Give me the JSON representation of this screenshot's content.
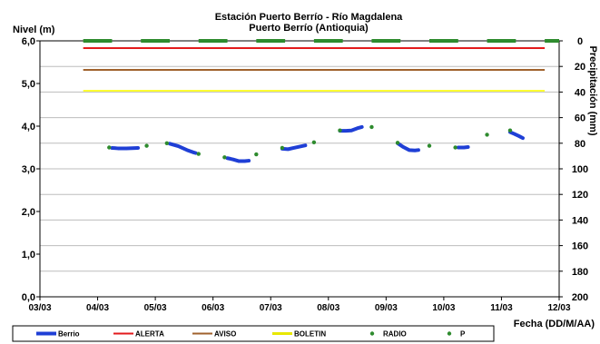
{
  "chart_data": {
    "type": "line",
    "title": "Estación Puerto Berrío - Río Magdalena",
    "subtitle": "Puerto Berrío (Antioquia)",
    "ylabel": "Nivel (m)",
    "y2label": "Precipitación (mm)",
    "xlabel": "Fecha (DD/M/AA)",
    "xlim": [
      0,
      9
    ],
    "ylim": [
      0,
      6
    ],
    "y2lim": [
      0,
      200
    ],
    "x_ticks": [
      "03/03",
      "04/03",
      "05/03",
      "06/03",
      "07/03",
      "08/03",
      "09/03",
      "10/03",
      "11/03",
      "12/03"
    ],
    "y_ticks": [
      "0,0",
      "1,0",
      "2,0",
      "3,0",
      "4,0",
      "5,0",
      "6,0"
    ],
    "y2_ticks": [
      "0",
      "20",
      "40",
      "60",
      "80",
      "100",
      "120",
      "140",
      "160",
      "180",
      "200"
    ],
    "grid": true,
    "legend_position": "bottom",
    "legend": [
      "Berrio",
      "ALERTA",
      "AVISO",
      "BOLETIN",
      "RADIO",
      "P"
    ],
    "series": [
      {
        "name": "Berrio",
        "color": "#1f3fd6",
        "kind": "line",
        "segments": [
          [
            [
              1.25,
              3.49
            ],
            [
              1.35,
              3.48
            ],
            [
              1.5,
              3.48
            ],
            [
              1.7,
              3.49
            ]
          ],
          [
            [
              2.25,
              3.59
            ],
            [
              2.4,
              3.53
            ],
            [
              2.55,
              3.44
            ],
            [
              2.65,
              3.39
            ],
            [
              2.7,
              3.37
            ]
          ],
          [
            [
              3.25,
              3.25
            ],
            [
              3.35,
              3.22
            ],
            [
              3.45,
              3.18
            ],
            [
              3.55,
              3.18
            ],
            [
              3.62,
              3.19
            ]
          ],
          [
            [
              4.2,
              3.47
            ],
            [
              4.3,
              3.46
            ],
            [
              4.4,
              3.49
            ],
            [
              4.5,
              3.52
            ],
            [
              4.6,
              3.55
            ]
          ],
          [
            [
              5.2,
              3.89
            ],
            [
              5.3,
              3.89
            ],
            [
              5.4,
              3.9
            ],
            [
              5.5,
              3.95
            ],
            [
              5.58,
              3.98
            ]
          ],
          [
            [
              6.2,
              3.6
            ],
            [
              6.3,
              3.51
            ],
            [
              6.4,
              3.44
            ],
            [
              6.5,
              3.43
            ],
            [
              6.56,
              3.44
            ]
          ],
          [
            [
              7.25,
              3.5
            ],
            [
              7.35,
              3.5
            ],
            [
              7.42,
              3.51
            ]
          ],
          [
            [
              8.15,
              3.86
            ],
            [
              8.22,
              3.82
            ],
            [
              8.3,
              3.77
            ],
            [
              8.37,
              3.72
            ]
          ]
        ]
      },
      {
        "name": "ALERTA",
        "color": "#e31a1c",
        "kind": "line",
        "points": [
          [
            0.75,
            5.83
          ],
          [
            8.75,
            5.83
          ]
        ]
      },
      {
        "name": "AVISO",
        "color": "#a0622d",
        "kind": "line",
        "points": [
          [
            0.75,
            5.32
          ],
          [
            8.75,
            5.32
          ]
        ]
      },
      {
        "name": "BOLETIN",
        "color": "#ffff33",
        "kind": "line",
        "points": [
          [
            0.75,
            4.83
          ],
          [
            8.75,
            4.83
          ]
        ]
      },
      {
        "name": "RADIO",
        "color": "#2e8b2e",
        "kind": "points",
        "points": [
          [
            1.2,
            3.5
          ],
          [
            1.85,
            3.54
          ],
          [
            2.2,
            3.6
          ],
          [
            2.75,
            3.35
          ],
          [
            3.2,
            3.27
          ],
          [
            3.75,
            3.34
          ],
          [
            4.2,
            3.49
          ],
          [
            4.75,
            3.62
          ],
          [
            5.2,
            3.9
          ],
          [
            5.75,
            3.98
          ],
          [
            6.2,
            3.61
          ],
          [
            6.75,
            3.54
          ],
          [
            7.2,
            3.5
          ],
          [
            7.75,
            3.8
          ],
          [
            8.15,
            3.9
          ]
        ]
      },
      {
        "name": "P",
        "color": "#2e8b2e",
        "kind": "dashes",
        "y2": 0,
        "segments": [
          [
            0.75,
            1.25
          ],
          [
            1.75,
            2.25
          ],
          [
            2.75,
            3.25
          ],
          [
            3.75,
            4.25
          ],
          [
            4.75,
            5.25
          ],
          [
            5.75,
            6.25
          ],
          [
            6.75,
            7.25
          ],
          [
            7.75,
            8.25
          ],
          [
            8.75,
            9.0
          ]
        ]
      }
    ]
  }
}
